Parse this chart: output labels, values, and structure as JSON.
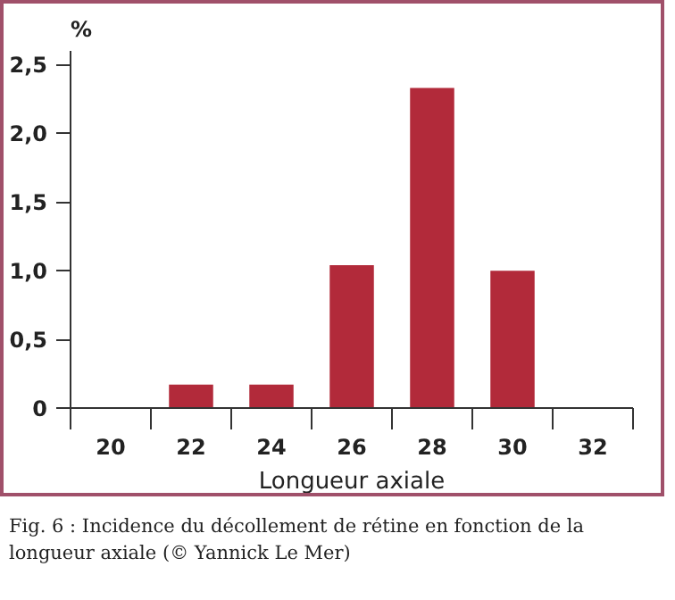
{
  "chart_data": {
    "type": "bar",
    "ylabel": "%",
    "xlabel": "Longueur axiale",
    "categories": [
      "20",
      "22",
      "24",
      "26",
      "28",
      "30",
      "32"
    ],
    "values": [
      null,
      0.17,
      0.17,
      1.04,
      2.33,
      1.0,
      null
    ],
    "color": "#b22a3a",
    "ylim": [
      0,
      2.6
    ],
    "yticks": [
      0,
      {
        "value": 0.5,
        "label": "0,5"
      },
      {
        "value": 1.0,
        "label": "1,0"
      },
      {
        "value": 1.5,
        "label": "1,5"
      },
      {
        "value": 2.0,
        "label": "2,0"
      },
      {
        "value": 2.5,
        "label": "2,5"
      }
    ],
    "grid": false,
    "annotations": [
      "Fig. 6 : Incidence du décollement de rétine en fonction de la longueur axiale (© Yannick Le Mer)"
    ]
  }
}
